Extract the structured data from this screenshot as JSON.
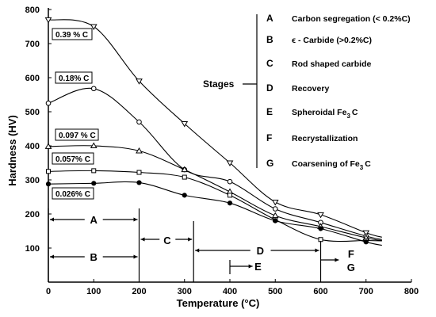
{
  "chart_data": {
    "type": "line",
    "title": "",
    "xlabel": "Temperature (°C)",
    "ylabel": "Hardness (HV)",
    "xlim": [
      0,
      800
    ],
    "ylim": [
      0,
      800
    ],
    "xticks": [
      "0",
      "100",
      "200",
      "300",
      "400",
      "500",
      "600",
      "700",
      "800"
    ],
    "yticks": [
      "100",
      "200",
      "300",
      "400",
      "500",
      "600",
      "700",
      "800"
    ],
    "grid": false,
    "series": [
      {
        "name": "0.39 % C",
        "marker": "triangle-down",
        "points": [
          [
            0,
            770
          ],
          [
            100,
            750
          ],
          [
            200,
            590
          ],
          [
            300,
            465
          ],
          [
            400,
            350
          ],
          [
            500,
            235
          ],
          [
            600,
            198
          ],
          [
            700,
            145
          ]
        ]
      },
      {
        "name": "0.18% C",
        "marker": "circle",
        "points": [
          [
            0,
            525
          ],
          [
            100,
            568
          ],
          [
            200,
            470
          ],
          [
            300,
            330
          ],
          [
            400,
            295
          ],
          [
            500,
            215
          ],
          [
            600,
            175
          ],
          [
            700,
            135
          ]
        ]
      },
      {
        "name": "0.097 % C",
        "marker": "triangle-up",
        "points": [
          [
            0,
            398
          ],
          [
            100,
            400
          ],
          [
            200,
            385
          ],
          [
            300,
            330
          ],
          [
            400,
            265
          ],
          [
            500,
            195
          ],
          [
            600,
            163
          ],
          [
            700,
            130
          ]
        ]
      },
      {
        "name": "0.057% C",
        "marker": "square",
        "points": [
          [
            0,
            325
          ],
          [
            100,
            327
          ],
          [
            200,
            322
          ],
          [
            300,
            308
          ],
          [
            400,
            255
          ],
          [
            500,
            183
          ],
          [
            600,
            125
          ],
          [
            700,
            122
          ]
        ]
      },
      {
        "name": "0.026% C",
        "marker": "filled-circle",
        "points": [
          [
            0,
            288
          ],
          [
            100,
            290
          ],
          [
            200,
            292
          ],
          [
            300,
            255
          ],
          [
            400,
            232
          ],
          [
            500,
            180
          ],
          [
            600,
            157
          ],
          [
            700,
            118
          ]
        ]
      }
    ],
    "stages_title": "Stages",
    "stages": [
      {
        "letter": "A",
        "text": "Carbon segregation (< 0.2%C)"
      },
      {
        "letter": "B",
        "text": "ϵ - Carbide (>0.2%C)"
      },
      {
        "letter": "C",
        "text": "Rod shaped carbide"
      },
      {
        "letter": "D",
        "text": "Recovery"
      },
      {
        "letter": "E",
        "text": "Spheroidal  Fe",
        "subscript": "3",
        "suffix": "C"
      },
      {
        "letter": "F",
        "text": "Recrystallization"
      },
      {
        "letter": "G",
        "text": "Coarsening of  Fe",
        "subscript": "3",
        "suffix": "C"
      }
    ],
    "temperature_ranges": [
      {
        "label": "A",
        "from": 0,
        "to": 200
      },
      {
        "label": "B",
        "from": 0,
        "to": 200
      },
      {
        "label": "C",
        "from": 200,
        "to": 320
      },
      {
        "label": "D",
        "from": 320,
        "to": 600
      },
      {
        "label": "E",
        "from": 400,
        "to": 450
      },
      {
        "label": "F",
        "from": 600,
        "to": 700
      },
      {
        "label": "G",
        "from": 600,
        "to": 700
      }
    ]
  }
}
